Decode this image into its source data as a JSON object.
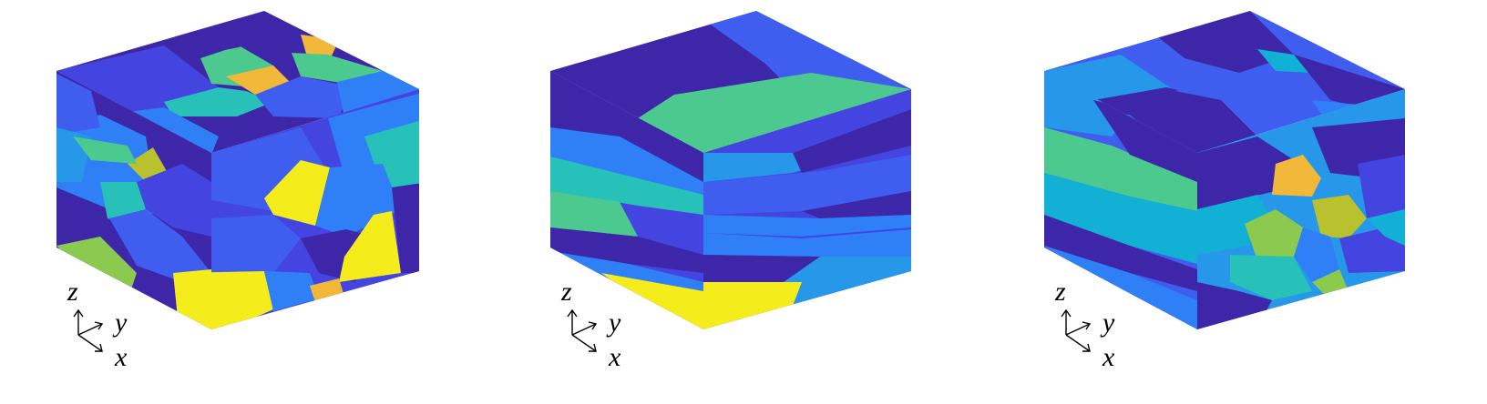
{
  "palette": {
    "indigo": "#3e26a8",
    "royal": "#4444e0",
    "blue": "#3f5ef0",
    "azure": "#2f80f7",
    "sky": "#2797ea",
    "cyan": "#13b0d6",
    "teal": "#27c1ba",
    "green": "#4cc98e",
    "lime": "#8bc94f",
    "olive": "#b9c22e",
    "amber": "#f2b83a",
    "yellow": "#f5ec1b"
  },
  "samples": [
    {
      "axes": {
        "z": "z",
        "y": "y",
        "x": "x"
      }
    },
    {
      "axes": {
        "z": "z",
        "y": "y",
        "x": "x"
      }
    },
    {
      "axes": {
        "z": "z",
        "y": "y",
        "x": "x"
      }
    }
  ]
}
